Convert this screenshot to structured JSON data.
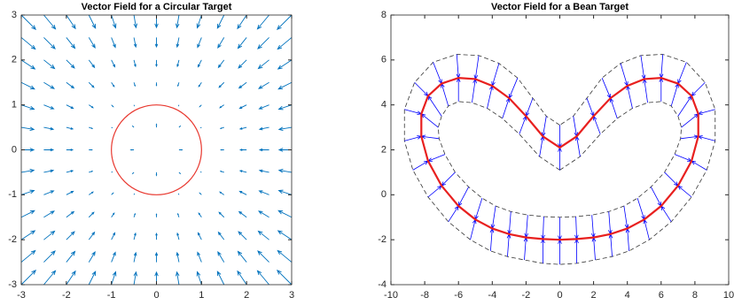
{
  "chart_data": [
    {
      "type": "quiver",
      "title": "Vector Field for a Circular Target",
      "x": [
        -3,
        -2.5,
        -2,
        -1.5,
        -1,
        -0.5,
        0,
        0.5,
        1,
        1.5,
        2,
        2.5,
        3
      ],
      "y": [
        -3,
        -2.5,
        -2,
        -1.5,
        -1,
        -0.5,
        0,
        0.5,
        1,
        1.5,
        2,
        2.5,
        3
      ],
      "u": [
        [
          2.292,
          1.86,
          1.446,
          1.053,
          0.684,
          0.336,
          0,
          -0.336,
          -0.684,
          -1.053,
          -1.446,
          -1.86,
          -2.292
        ],
        [
          2.232,
          1.793,
          1.376,
          0.986,
          0.629,
          0.304,
          0,
          -0.304,
          -0.629,
          -0.986,
          -1.376,
          -1.793,
          -2.232
        ],
        [
          2.169,
          1.72,
          1.292,
          0.9,
          0.553,
          0.258,
          0,
          -0.258,
          -0.553,
          -0.9,
          -1.292,
          -1.72,
          -2.169
        ],
        [
          2.106,
          1.643,
          1.2,
          0.794,
          0.445,
          0.184,
          0,
          -0.184,
          -0.445,
          -0.794,
          -1.2,
          -1.643,
          -2.106
        ],
        [
          2.052,
          1.573,
          1.106,
          0.668,
          0.293,
          0.053,
          0,
          -0.053,
          -0.293,
          -0.668,
          -1.106,
          -1.573,
          -2.052
        ],
        [
          2.013,
          1.52,
          1.03,
          0.552,
          0.106,
          -0.207,
          0,
          0.207,
          -0.106,
          -0.552,
          -1.03,
          -1.52,
          -2.013
        ],
        [
          2,
          1.5,
          1,
          0.5,
          0,
          -0.5,
          0,
          0.5,
          0,
          -0.5,
          -1,
          -1.5,
          -2
        ],
        [
          2.013,
          1.52,
          1.03,
          0.552,
          0.106,
          -0.207,
          0,
          0.207,
          -0.106,
          -0.552,
          -1.03,
          -1.52,
          -2.013
        ],
        [
          2.052,
          1.573,
          1.106,
          0.668,
          0.293,
          0.053,
          0,
          -0.053,
          -0.293,
          -0.668,
          -1.106,
          -1.573,
          -2.052
        ],
        [
          2.106,
          1.643,
          1.2,
          0.794,
          0.445,
          0.184,
          0,
          -0.184,
          -0.445,
          -0.794,
          -1.2,
          -1.643,
          -2.106
        ],
        [
          2.169,
          1.72,
          1.292,
          0.9,
          0.553,
          0.258,
          0,
          -0.258,
          -0.553,
          -0.9,
          -1.292,
          -1.72,
          -2.169
        ],
        [
          2.232,
          1.793,
          1.376,
          0.986,
          0.629,
          0.304,
          0,
          -0.304,
          -0.629,
          -0.986,
          -1.376,
          -1.793,
          -2.232
        ],
        [
          2.292,
          1.86,
          1.446,
          1.053,
          0.684,
          0.336,
          0,
          -0.336,
          -0.684,
          -1.053,
          -1.446,
          -1.86,
          -2.292
        ]
      ],
      "v": [
        [
          2.292,
          2.232,
          2.169,
          2.106,
          2.052,
          2.013,
          2,
          2.013,
          2.052,
          2.106,
          2.169,
          2.232,
          2.292
        ],
        [
          1.86,
          1.793,
          1.72,
          1.643,
          1.573,
          1.52,
          1.5,
          1.52,
          1.573,
          1.643,
          1.72,
          1.793,
          1.86
        ],
        [
          1.446,
          1.376,
          1.292,
          1.2,
          1.106,
          1.03,
          1,
          1.03,
          1.106,
          1.2,
          1.292,
          1.376,
          1.446
        ],
        [
          1.053,
          0.986,
          0.9,
          0.794,
          0.668,
          0.552,
          0.5,
          0.552,
          0.668,
          0.794,
          0.9,
          0.986,
          1.053
        ],
        [
          0.684,
          0.629,
          0.553,
          0.445,
          0.293,
          0.106,
          0,
          0.106,
          0.293,
          0.445,
          0.553,
          0.629,
          0.684
        ],
        [
          0.336,
          0.304,
          0.258,
          0.184,
          0.053,
          -0.207,
          -0.5,
          -0.207,
          0.053,
          0.184,
          0.258,
          0.304,
          0.336
        ],
        [
          0,
          0,
          0,
          0,
          0,
          0,
          0,
          0,
          0,
          0,
          0,
          0,
          0
        ],
        [
          -0.336,
          -0.304,
          -0.258,
          -0.184,
          -0.053,
          0.207,
          0.5,
          0.207,
          -0.053,
          -0.184,
          -0.258,
          -0.304,
          -0.336
        ],
        [
          -0.684,
          -0.629,
          -0.553,
          -0.445,
          -0.293,
          -0.106,
          0,
          -0.106,
          -0.293,
          -0.445,
          -0.553,
          -0.629,
          -0.684
        ],
        [
          -1.053,
          -0.986,
          -0.9,
          -0.794,
          -0.668,
          -0.552,
          -0.5,
          -0.552,
          -0.668,
          -0.794,
          -0.9,
          -0.986,
          -1.053
        ],
        [
          -1.446,
          -1.376,
          -1.292,
          -1.2,
          -1.106,
          -1.03,
          -1,
          -1.03,
          -1.106,
          -1.2,
          -1.292,
          -1.376,
          -1.446
        ],
        [
          -1.86,
          -1.793,
          -1.72,
          -1.643,
          -1.573,
          -1.52,
          -1.5,
          -1.52,
          -1.573,
          -1.643,
          -1.72,
          -1.793,
          -1.86
        ],
        [
          -2.292,
          -2.232,
          -2.169,
          -2.106,
          -2.052,
          -2.013,
          -2,
          -2.013,
          -2.052,
          -2.106,
          -2.169,
          -2.232,
          -2.292
        ]
      ],
      "color": "#0072bd",
      "target": {
        "cx": 0,
        "cy": 0,
        "r": 1,
        "color": "#e8382f"
      },
      "xlim": [
        -3,
        3
      ],
      "ylim": [
        -3,
        3
      ],
      "xticks": [
        -3,
        -2,
        -1,
        0,
        1,
        2,
        3
      ],
      "yticks": [
        -3,
        -2,
        -1,
        0,
        1,
        2,
        3
      ]
    },
    {
      "type": "band-quiver",
      "title": "Vector Field for a Bean Target",
      "target": {
        "color": "#e8201f",
        "x": [
          0,
          -1,
          -2,
          -3,
          -4,
          -5,
          -6,
          -7,
          -7.8,
          -8.2,
          -8.2,
          -7.8,
          -7,
          -6,
          -5,
          -4,
          -3,
          -2,
          -1,
          0,
          1,
          2,
          3,
          4,
          5,
          6,
          7,
          7.8,
          8.2,
          8.2,
          7.8,
          7,
          6,
          5,
          4,
          3,
          2,
          1
        ],
        "y": [
          2.1,
          2.6,
          3.5,
          4.3,
          4.85,
          5.15,
          5.2,
          4.95,
          4.4,
          3.6,
          2.6,
          1.5,
          0.4,
          -0.5,
          -1.1,
          -1.5,
          -1.75,
          -1.9,
          -1.97,
          -2,
          -1.97,
          -1.9,
          -1.75,
          -1.5,
          -1.1,
          -0.5,
          0.4,
          1.5,
          2.6,
          3.6,
          4.4,
          4.95,
          5.2,
          5.15,
          4.85,
          4.3,
          3.5,
          2.6
        ]
      },
      "outer": {
        "x": [
          0,
          -0.8,
          -1.6,
          -2.5,
          -3.6,
          -4.8,
          -6.1,
          -7.5,
          -8.6,
          -9.2,
          -9.2,
          -8.7,
          -7.8,
          -6.6,
          -5.3,
          -4.1,
          -3.1,
          -2.1,
          -1,
          0,
          1,
          2.1,
          3.1,
          4.1,
          5.3,
          6.6,
          7.8,
          8.7,
          9.2,
          9.2,
          8.6,
          7.5,
          6.1,
          4.8,
          3.6,
          2.5,
          1.6,
          0.8
        ],
        "y": [
          3.1,
          3.5,
          4.3,
          5.2,
          5.85,
          6.2,
          6.25,
          5.9,
          5.0,
          3.8,
          2.4,
          1.1,
          -0.1,
          -1.2,
          -2.0,
          -2.5,
          -2.75,
          -2.9,
          -3.05,
          -3.1,
          -3.05,
          -2.9,
          -2.75,
          -2.5,
          -2.0,
          -1.2,
          -0.1,
          1.1,
          2.4,
          3.8,
          5.0,
          5.9,
          6.25,
          6.2,
          5.85,
          5.2,
          4.3,
          3.5
        ]
      },
      "inner": {
        "x": [
          0,
          -1.2,
          -2.4,
          -3.4,
          -4.3,
          -5.2,
          -6,
          -6.6,
          -7.0,
          -7.2,
          -7.15,
          -6.8,
          -6.2,
          -5.4,
          -4.6,
          -3.8,
          -2.9,
          -1.9,
          -0.95,
          0,
          0.95,
          1.9,
          2.9,
          3.8,
          4.6,
          5.4,
          6.2,
          6.8,
          7.15,
          7.2,
          7.0,
          6.6,
          6,
          5.2,
          4.3,
          3.4,
          2.4,
          1.2
        ],
        "y": [
          1.1,
          1.7,
          2.7,
          3.4,
          3.85,
          4.1,
          4.15,
          3.95,
          3.5,
          3.0,
          2.5,
          1.8,
          1.0,
          0.35,
          -0.15,
          -0.5,
          -0.75,
          -0.9,
          -0.97,
          -1.0,
          -0.97,
          -0.9,
          -0.75,
          -0.5,
          -0.15,
          0.35,
          1.0,
          1.8,
          2.5,
          3.0,
          3.5,
          3.95,
          4.15,
          4.1,
          3.85,
          3.4,
          2.7,
          1.7
        ]
      },
      "color": "#0000ff",
      "band_color": "#333333",
      "xlim": [
        -10,
        10
      ],
      "ylim": [
        -4,
        8
      ],
      "xticks": [
        -10,
        -8,
        -6,
        -4,
        -2,
        0,
        2,
        4,
        6,
        8,
        10
      ],
      "yticks": [
        -4,
        -2,
        0,
        2,
        4,
        6,
        8
      ]
    }
  ]
}
